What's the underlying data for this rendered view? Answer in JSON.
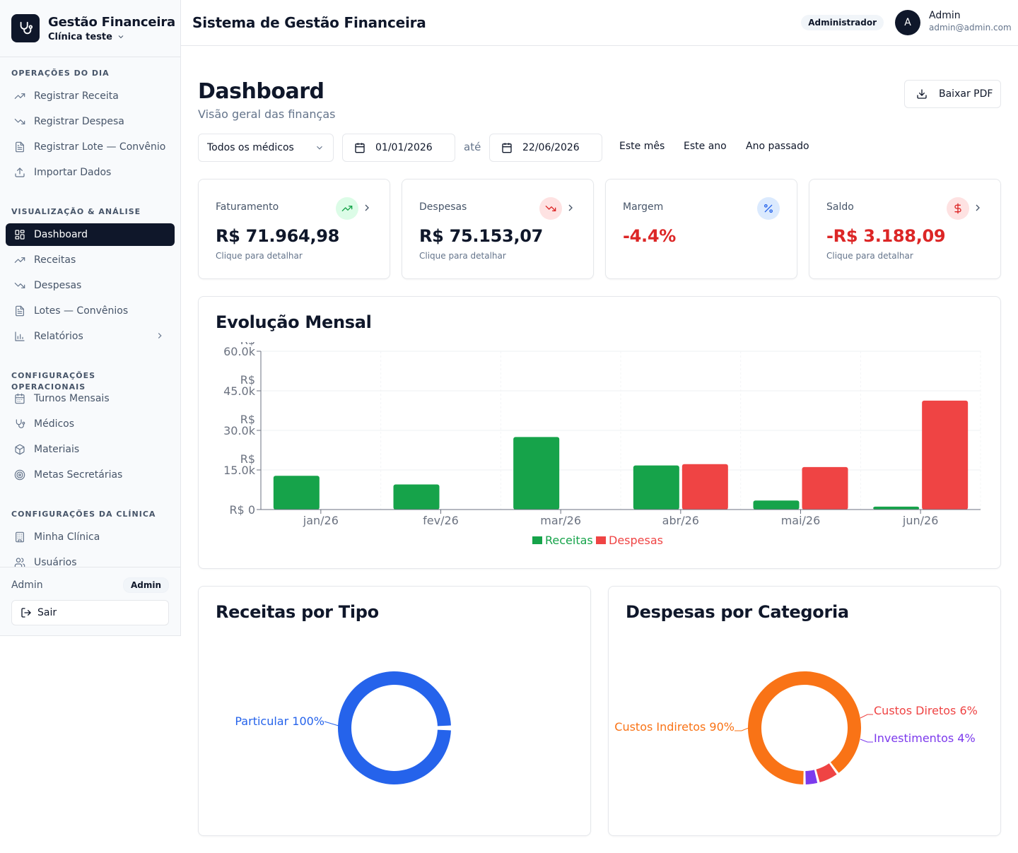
{
  "brand": {
    "title": "Gestão Financeira",
    "clinic": "Clínica teste"
  },
  "nav": {
    "sections": [
      {
        "title": "OPERAÇÕES DO DIA",
        "items": [
          {
            "label": "Registrar Receita",
            "icon": "trending-up-icon"
          },
          {
            "label": "Registrar Despesa",
            "icon": "trending-down-icon"
          },
          {
            "label": "Registrar Lote — Convênio",
            "icon": "file-text-icon"
          },
          {
            "label": "Importar Dados",
            "icon": "upload-icon"
          }
        ]
      },
      {
        "title": "VISUALIZAÇÃO & ANÁLISE",
        "items": [
          {
            "label": "Dashboard",
            "icon": "layout-grid-icon",
            "active": true
          },
          {
            "label": "Receitas",
            "icon": "trending-up-icon"
          },
          {
            "label": "Despesas",
            "icon": "trending-down-icon"
          },
          {
            "label": "Lotes — Convênios",
            "icon": "file-text-icon"
          },
          {
            "label": "Relatórios",
            "icon": "bar-chart-icon",
            "submenu": true
          }
        ]
      },
      {
        "title": "CONFIGURAÇÕES OPERACIONAIS",
        "items": [
          {
            "label": "Turnos Mensais",
            "icon": "calendar-icon"
          },
          {
            "label": "Médicos",
            "icon": "stethoscope-icon"
          },
          {
            "label": "Materiais",
            "icon": "package-icon"
          },
          {
            "label": "Metas Secretárias",
            "icon": "target-icon"
          }
        ]
      },
      {
        "title": "CONFIGURAÇÕES DA CLÍNICA",
        "items": [
          {
            "label": "Minha Clínica",
            "icon": "building-icon"
          },
          {
            "label": "Usuários",
            "icon": "users-icon"
          }
        ]
      }
    ]
  },
  "sidebar_footer": {
    "user": "Admin",
    "role": "Admin",
    "logout": "Sair"
  },
  "header": {
    "title": "Sistema de Gestão Financeira",
    "role": "Administrador",
    "avatar_initial": "A",
    "user_name": "Admin",
    "user_email": "admin@admin.com"
  },
  "page": {
    "title": "Dashboard",
    "subtitle": "Visão geral das finanças",
    "pdf_button": "Baixar PDF"
  },
  "filters": {
    "doctor": "Todos os médicos",
    "date_from": "01/01/2026",
    "to_label": "até",
    "date_to": "22/06/2026",
    "quick": [
      "Este mês",
      "Este ano",
      "Ano passado"
    ]
  },
  "kpis": [
    {
      "label": "Faturamento",
      "value": "R$ 71.964,98",
      "hint": "Clique para detalhar",
      "icon": "trending-up-icon",
      "value_color": "#0f172a",
      "icon_bg": "#dcfce7",
      "icon_color": "#16a34a",
      "clickable": true
    },
    {
      "label": "Despesas",
      "value": "R$ 75.153,07",
      "hint": "Clique para detalhar",
      "icon": "trending-down-icon",
      "value_color": "#0f172a",
      "icon_bg": "#fee2e2",
      "icon_color": "#dc2626",
      "clickable": true
    },
    {
      "label": "Margem",
      "value": "-4.4%",
      "hint": "",
      "icon": "percent-icon",
      "value_color": "#dc2626",
      "icon_bg": "#dbeafe",
      "icon_color": "#2563eb",
      "clickable": false
    },
    {
      "label": "Saldo",
      "value": "-R$ 3.188,09",
      "hint": "Clique para detalhar",
      "icon": "dollar-icon",
      "value_color": "#dc2626",
      "icon_bg": "#fee2e2",
      "icon_color": "#dc2626",
      "clickable": true
    }
  ],
  "charts": {
    "monthly_title": "Evolução Mensal",
    "revenue_title": "Receitas por Tipo",
    "expense_title": "Despesas por Categoria"
  },
  "chart_data": [
    {
      "type": "bar",
      "title": "Evolução Mensal",
      "categories": [
        "jan/26",
        "fev/26",
        "mar/26",
        "abr/26",
        "mai/26",
        "jun/26"
      ],
      "series": [
        {
          "name": "Receitas",
          "color": "#16a34a",
          "values": [
            12800,
            9500,
            27500,
            16700,
            3400,
            1100
          ]
        },
        {
          "name": "Despesas",
          "color": "#ef4444",
          "values": [
            0,
            0,
            0,
            17200,
            16100,
            41300
          ]
        }
      ],
      "ylim": [
        0,
        60000
      ],
      "y_ticks": [
        0,
        15000,
        30000,
        45000,
        60000
      ],
      "y_tick_labels": [
        [
          "R$ 0"
        ],
        [
          "R$",
          "15.0k"
        ],
        [
          "R$",
          "30.0k"
        ],
        [
          "R$",
          "45.0k"
        ],
        [
          "R$",
          "60.0k"
        ]
      ],
      "grid": true,
      "legend": "bottom"
    },
    {
      "type": "pie",
      "title": "Receitas por Tipo",
      "slices": [
        {
          "label": "Particular",
          "percent": 100,
          "color": "#2563eb",
          "text": "Particular 100%"
        }
      ]
    },
    {
      "type": "pie",
      "title": "Despesas por Categoria",
      "slices": [
        {
          "label": "Custos Indiretos",
          "percent": 90,
          "color": "#f97316",
          "text": "Custos Indiretos 90%"
        },
        {
          "label": "Custos Diretos",
          "percent": 6,
          "color": "#ef4444",
          "text": "Custos Diretos 6%"
        },
        {
          "label": "Investimentos",
          "percent": 4,
          "color": "#7c3aed",
          "text": "Investimentos 4%"
        }
      ]
    }
  ]
}
